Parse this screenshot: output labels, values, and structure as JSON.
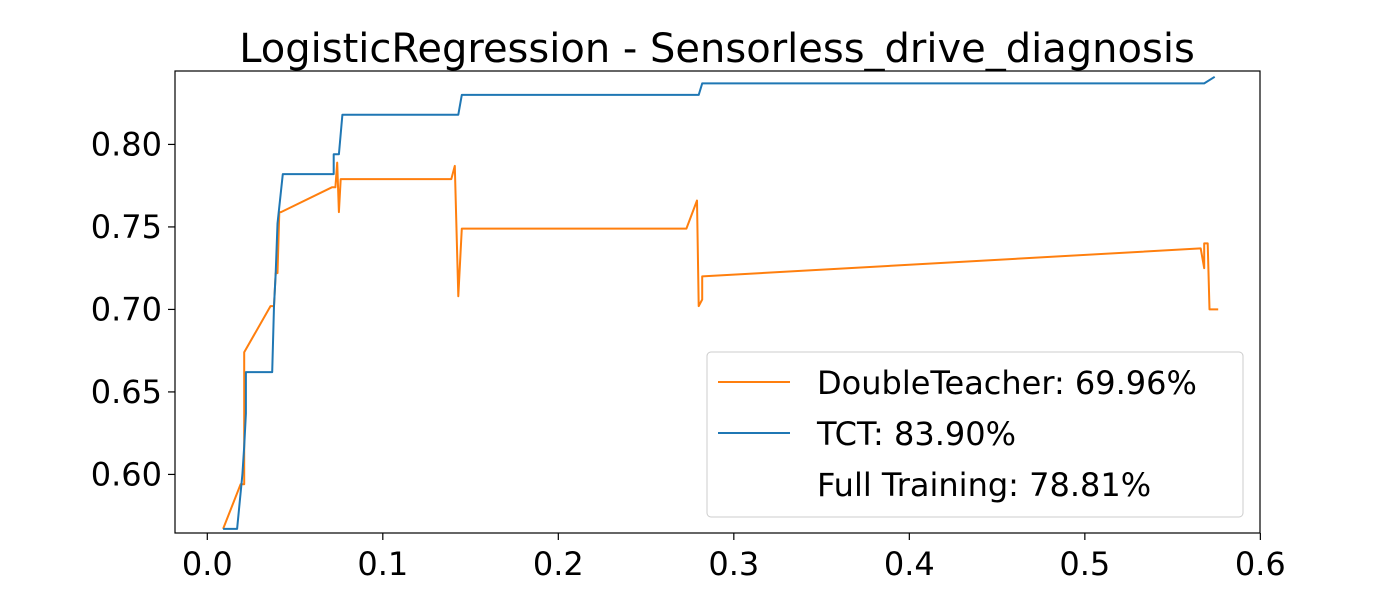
{
  "chart_data": {
    "type": "line",
    "title": "LogisticRegression - Sensorless_drive_diagnosis",
    "xlabel": "",
    "ylabel": "",
    "xlim": [
      -0.0184,
      0.5998
    ],
    "ylim": [
      0.5645,
      0.8445
    ],
    "x_ticks": [
      0.0,
      0.1,
      0.2,
      0.3,
      0.4,
      0.5,
      0.6
    ],
    "x_tick_labels": [
      "0.0",
      "0.1",
      "0.2",
      "0.3",
      "0.4",
      "0.5",
      "0.6"
    ],
    "y_ticks": [
      0.6,
      0.65,
      0.7,
      0.75,
      0.8
    ],
    "y_tick_labels": [
      "0.60",
      "0.65",
      "0.70",
      "0.75",
      "0.80"
    ],
    "grid": false,
    "legend_position": "lower-right",
    "legend": [
      {
        "label": "DoubleTeacher: 69.96%",
        "color": "#ff7f0e",
        "has_line": true
      },
      {
        "label": "TCT: 83.90%",
        "color": "#1f77b4",
        "has_line": true
      },
      {
        "label": "Full Training: 78.81%",
        "color": "#000000",
        "has_line": false
      }
    ],
    "series": [
      {
        "key": "doubleteacher",
        "color": "#ff7f0e",
        "points": [
          [
            0.009,
            0.567
          ],
          [
            0.019,
            0.594
          ],
          [
            0.021,
            0.594
          ],
          [
            0.021,
            0.674
          ],
          [
            0.036,
            0.702
          ],
          [
            0.038,
            0.702
          ],
          [
            0.039,
            0.722
          ],
          [
            0.04,
            0.722
          ],
          [
            0.041,
            0.759
          ],
          [
            0.042,
            0.759
          ],
          [
            0.071,
            0.774
          ],
          [
            0.073,
            0.774
          ],
          [
            0.074,
            0.789
          ],
          [
            0.075,
            0.759
          ],
          [
            0.076,
            0.779
          ],
          [
            0.139,
            0.779
          ],
          [
            0.141,
            0.787
          ],
          [
            0.143,
            0.708
          ],
          [
            0.145,
            0.749
          ],
          [
            0.273,
            0.749
          ],
          [
            0.279,
            0.766
          ],
          [
            0.28,
            0.702
          ],
          [
            0.282,
            0.706
          ],
          [
            0.282,
            0.72
          ],
          [
            0.566,
            0.737
          ],
          [
            0.568,
            0.725
          ],
          [
            0.568,
            0.74
          ],
          [
            0.57,
            0.74
          ],
          [
            0.571,
            0.7
          ],
          [
            0.576,
            0.7
          ]
        ]
      },
      {
        "key": "tct",
        "color": "#1f77b4",
        "points": [
          [
            0.009,
            0.567
          ],
          [
            0.017,
            0.567
          ],
          [
            0.02,
            0.6
          ],
          [
            0.021,
            0.617
          ],
          [
            0.022,
            0.637
          ],
          [
            0.022,
            0.662
          ],
          [
            0.037,
            0.662
          ],
          [
            0.038,
            0.702
          ],
          [
            0.039,
            0.722
          ],
          [
            0.04,
            0.752
          ],
          [
            0.043,
            0.782
          ],
          [
            0.072,
            0.782
          ],
          [
            0.072,
            0.794
          ],
          [
            0.075,
            0.794
          ],
          [
            0.077,
            0.818
          ],
          [
            0.143,
            0.818
          ],
          [
            0.145,
            0.83
          ],
          [
            0.28,
            0.83
          ],
          [
            0.282,
            0.837
          ],
          [
            0.568,
            0.837
          ],
          [
            0.574,
            0.841
          ]
        ]
      }
    ]
  }
}
